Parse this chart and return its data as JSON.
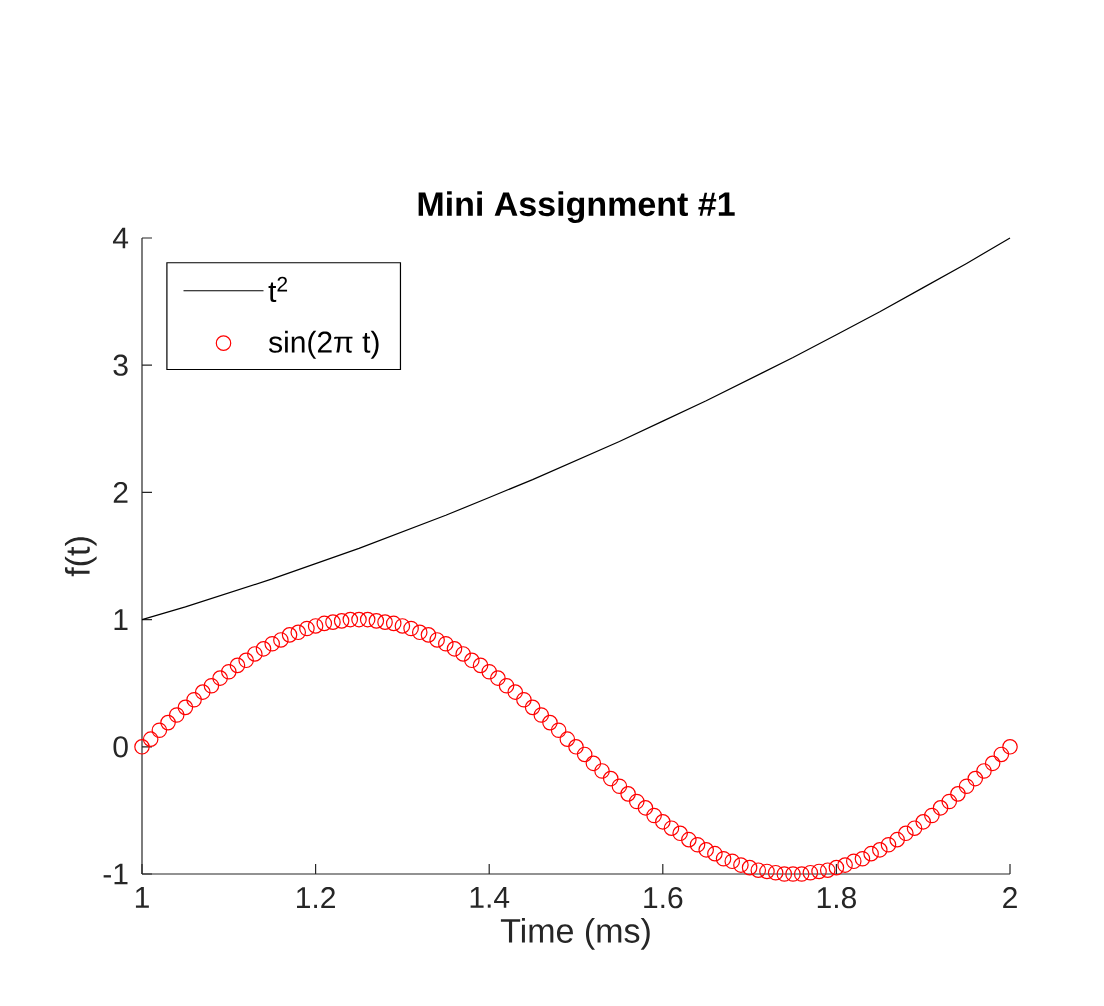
{
  "chart_data": {
    "type": "line",
    "title": "Mini Assignment #1",
    "xlabel": "Time (ms)",
    "ylabel": "f(t)",
    "xlim": [
      1,
      2
    ],
    "ylim": [
      -1,
      4
    ],
    "xticks": [
      1,
      1.2,
      1.4,
      1.6,
      1.8,
      2
    ],
    "yticks": [
      -1,
      0,
      1,
      2,
      3,
      4
    ],
    "legend": "top left",
    "series": [
      {
        "name": "t$^{2}$",
        "marker": "none",
        "color": "#000000",
        "x": [
          1,
          1.05,
          1.1,
          1.15,
          1.2,
          1.25,
          1.3,
          1.35,
          1.4,
          1.45,
          1.5,
          1.55,
          1.6,
          1.65,
          1.7,
          1.75,
          1.8,
          1.85,
          1.9,
          1.95,
          2
        ],
        "values": [
          1,
          1.1,
          1.21,
          1.32,
          1.44,
          1.56,
          1.69,
          1.82,
          1.96,
          2.1,
          2.25,
          2.4,
          2.56,
          2.72,
          2.89,
          3.06,
          3.24,
          3.42,
          3.61,
          3.8,
          4
        ]
      },
      {
        "name": "sin(2π t)",
        "type": "scatter",
        "marker": "circle",
        "color": "#ff0000",
        "x": [
          1,
          1.01,
          1.02,
          1.03,
          1.04,
          1.05,
          1.06,
          1.07,
          1.08,
          1.09,
          1.1,
          1.11,
          1.12,
          1.13,
          1.14,
          1.15,
          1.16,
          1.17,
          1.18,
          1.19,
          1.2,
          1.21,
          1.22,
          1.23,
          1.24,
          1.25,
          1.26,
          1.27,
          1.28,
          1.29,
          1.3,
          1.31,
          1.32,
          1.33,
          1.34,
          1.35,
          1.36,
          1.37,
          1.38,
          1.39,
          1.4,
          1.41,
          1.42,
          1.43,
          1.44,
          1.45,
          1.46,
          1.47,
          1.48,
          1.49,
          1.5,
          1.51,
          1.52,
          1.53,
          1.54,
          1.55,
          1.56,
          1.57,
          1.58,
          1.59,
          1.6,
          1.61,
          1.62,
          1.63,
          1.64,
          1.65,
          1.66,
          1.67,
          1.68,
          1.69,
          1.7,
          1.71,
          1.72,
          1.73,
          1.74,
          1.75,
          1.76,
          1.77,
          1.78,
          1.79,
          1.8,
          1.81,
          1.82,
          1.83,
          1.84,
          1.85,
          1.86,
          1.87,
          1.88,
          1.89,
          1.9,
          1.91,
          1.92,
          1.93,
          1.94,
          1.95,
          1.96,
          1.97,
          1.98,
          1.99,
          2
        ],
        "values": [
          0,
          0.06,
          0.13,
          0.19,
          0.25,
          0.31,
          0.37,
          0.43,
          0.48,
          0.54,
          0.59,
          0.64,
          0.68,
          0.73,
          0.77,
          0.81,
          0.84,
          0.88,
          0.9,
          0.93,
          0.95,
          0.97,
          0.98,
          0.99,
          1,
          1,
          1,
          0.99,
          0.98,
          0.97,
          0.95,
          0.93,
          0.9,
          0.88,
          0.84,
          0.81,
          0.77,
          0.73,
          0.68,
          0.64,
          0.59,
          0.54,
          0.48,
          0.43,
          0.37,
          0.31,
          0.25,
          0.19,
          0.13,
          0.06,
          0,
          -0.06,
          -0.13,
          -0.19,
          -0.25,
          -0.31,
          -0.37,
          -0.43,
          -0.48,
          -0.54,
          -0.59,
          -0.64,
          -0.68,
          -0.73,
          -0.77,
          -0.81,
          -0.84,
          -0.88,
          -0.9,
          -0.93,
          -0.95,
          -0.97,
          -0.98,
          -0.99,
          -1,
          -1,
          -1,
          -0.99,
          -0.98,
          -0.97,
          -0.95,
          -0.93,
          -0.9,
          -0.88,
          -0.84,
          -0.81,
          -0.77,
          -0.73,
          -0.68,
          -0.64,
          -0.59,
          -0.54,
          -0.48,
          -0.43,
          -0.37,
          -0.31,
          -0.25,
          -0.19,
          -0.13,
          -0.06,
          0
        ]
      }
    ]
  }
}
